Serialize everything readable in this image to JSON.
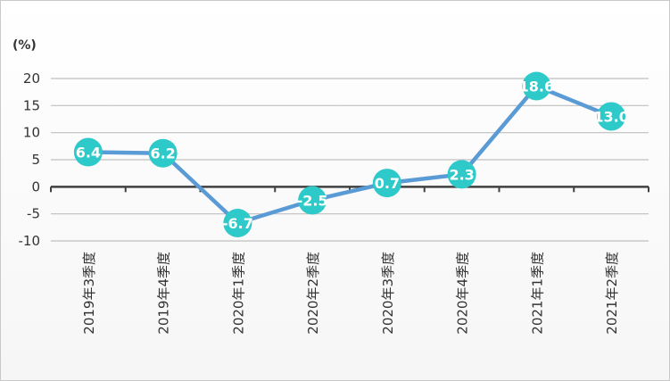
{
  "chart_data": {
    "type": "line",
    "unit_label": "(%)",
    "categories": [
      "2019年3季度",
      "2019年4季度",
      "2020年1季度",
      "2020年2季度",
      "2020年3季度",
      "2020年4季度",
      "2021年1季度",
      "2021年2季度"
    ],
    "series": [
      {
        "values": [
          6.4,
          6.2,
          -6.7,
          -2.5,
          0.7,
          2.3,
          18.6,
          13.0
        ]
      }
    ],
    "value_labels": [
      "6.4",
      "6.2",
      "-6.7",
      "-2.5",
      "0.7",
      "2.3",
      "18.6",
      "13.0"
    ],
    "y_ticks": [
      20,
      15,
      10,
      5,
      0,
      -5,
      -10
    ],
    "ylim": [
      -10,
      20
    ],
    "grid": true,
    "colors": {
      "line": "#5b9bd5",
      "marker": "#2ec9c9",
      "grid": "#bfbfbf",
      "axis": "#404040"
    }
  }
}
